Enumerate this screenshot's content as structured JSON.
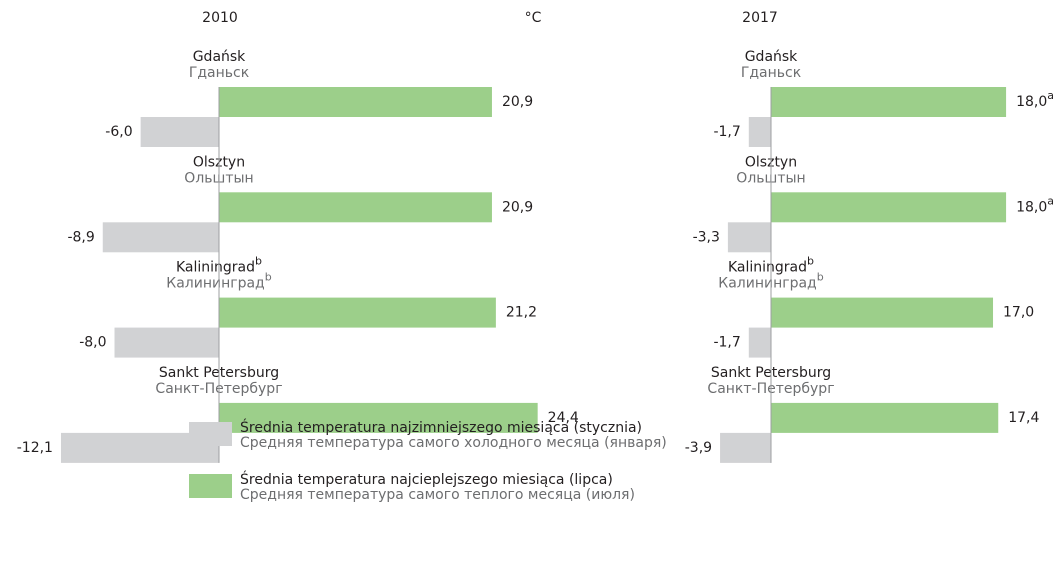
{
  "chart_data": [
    {
      "type": "bar",
      "title": "2010",
      "unit": "°C",
      "categories": [
        {
          "name": "Gdańsk",
          "name_ru": "Гданьск"
        },
        {
          "name": "Olsztyn",
          "name_ru": "Ольштын"
        },
        {
          "name": "Kaliningrad",
          "name_ru": "Калининград",
          "note": "b"
        },
        {
          "name": "Sankt Petersburg",
          "name_ru": "Санкт-Петербург"
        }
      ],
      "xlim": [
        -13,
        25
      ],
      "series": [
        {
          "name": [
            "Średnia temperatura najcieplejszego miesiąca (lipca)",
            "Средняя температура самого теплого месяца (июля)"
          ],
          "color": "#9ccf8a",
          "values": [
            20.9,
            20.9,
            21.2,
            24.4
          ],
          "value_labels": [
            "20,9",
            "20,9",
            "21,2",
            "24,4"
          ]
        },
        {
          "name": [
            "Średnia temperatura najzimniejszego miesiąca (stycznia)",
            "Средняя температура самого холодного месяца (января)"
          ],
          "color": "#d1d2d4",
          "values": [
            -6.0,
            -8.9,
            -8.0,
            -12.1
          ],
          "value_labels": [
            "-6,0",
            "-8,9",
            "-8,0",
            "-12,1"
          ]
        }
      ]
    },
    {
      "type": "bar",
      "title": "2017",
      "categories": [
        {
          "name": "Gdańsk",
          "name_ru": "Гданьск"
        },
        {
          "name": "Olsztyn",
          "name_ru": "Ольштын"
        },
        {
          "name": "Kaliningrad",
          "name_ru": "Калининград",
          "note": "b"
        },
        {
          "name": "Sankt Petersburg",
          "name_ru": "Санкт-Петербург"
        }
      ],
      "xlim": [
        -6,
        20
      ],
      "series": [
        {
          "color": "#9ccf8a",
          "values": [
            18.0,
            18.0,
            17.0,
            17.4
          ],
          "value_labels": [
            "18,0",
            "18,0",
            "17,0",
            "17,4"
          ],
          "value_notes": [
            "a",
            "a",
            null,
            null
          ]
        },
        {
          "color": "#d1d2d4",
          "values": [
            -1.7,
            -3.3,
            -1.7,
            -3.9
          ],
          "value_labels": [
            "-1,7",
            "-3,3",
            "-1,7",
            "-3,9"
          ]
        }
      ]
    }
  ]
}
